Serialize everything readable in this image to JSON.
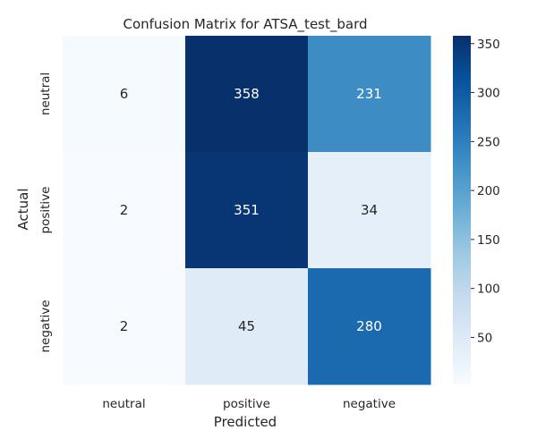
{
  "chart_data": {
    "type": "heatmap",
    "title": "Confusion Matrix for ATSA_test_bard",
    "xlabel": "Predicted",
    "ylabel": "Actual",
    "x_categories": [
      "neutral",
      "positive",
      "negative"
    ],
    "y_categories": [
      "neutral",
      "positive",
      "negative"
    ],
    "values": [
      [
        6,
        358,
        231
      ],
      [
        2,
        351,
        34
      ],
      [
        2,
        45,
        280
      ]
    ],
    "colormap": "Blues",
    "vmin": 2,
    "vmax": 358,
    "colorbar_ticks": [
      50,
      100,
      150,
      200,
      250,
      300,
      350
    ],
    "annotated": true
  }
}
